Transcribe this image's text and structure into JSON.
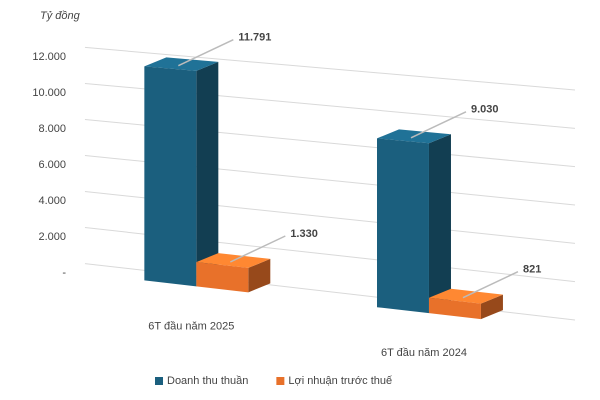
{
  "chart_data": {
    "type": "bar3d",
    "y_label": "Tỷ đồng",
    "categories": [
      "6T đầu năm 2025",
      "6T đầu năm 2024"
    ],
    "series": [
      {
        "name": "Doanh thu thuần",
        "color": "#1b5f7e",
        "values": [
          11791,
          9030
        ],
        "value_labels": [
          "11.791",
          "9.030"
        ]
      },
      {
        "name": "Lợi nhuận trước thuế",
        "color": "#e8712a",
        "values": [
          1330,
          821
        ],
        "value_labels": [
          "1.330",
          "821"
        ]
      }
    ],
    "ylim": [
      0,
      12000
    ],
    "yticks": [
      {
        "value": 0,
        "label": "-"
      },
      {
        "value": 2000,
        "label": "2.000"
      },
      {
        "value": 4000,
        "label": "4.000"
      },
      {
        "value": 6000,
        "label": "6.000"
      },
      {
        "value": 8000,
        "label": "8.000"
      },
      {
        "value": 10000,
        "label": "10.000"
      },
      {
        "value": 12000,
        "label": "12.000"
      }
    ],
    "grid": true,
    "legend": "bottom"
  }
}
